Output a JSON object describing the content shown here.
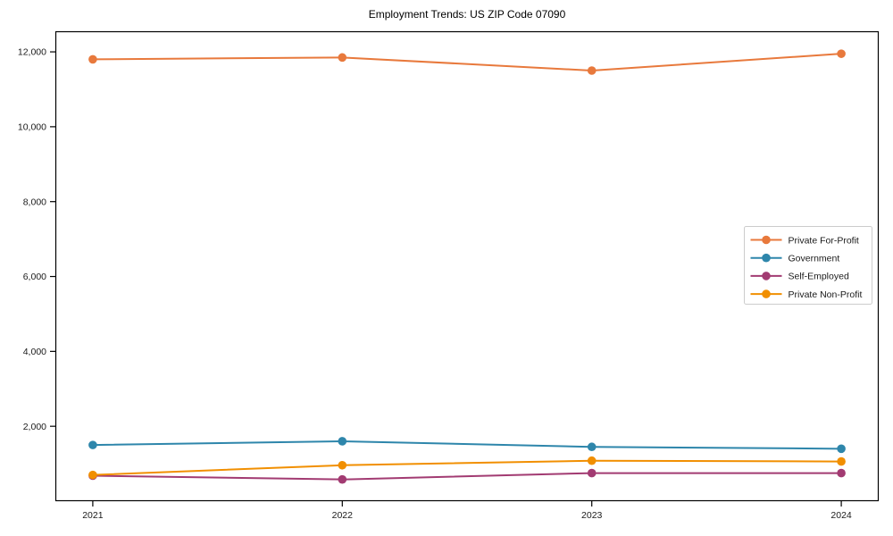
{
  "figure": {
    "title": "Employment Trends: US ZIP Code 07090"
  },
  "chart_data": {
    "type": "line",
    "title": "Employment Trends: US ZIP Code 07090",
    "xlabel": "",
    "ylabel": "",
    "x": [
      2021,
      2022,
      2023,
      2024
    ],
    "x_tick_labels": [
      "2021",
      "2022",
      "2023",
      "2024"
    ],
    "series": [
      {
        "name": "Private For-Profit",
        "color": "#E8793C",
        "values": [
          11800,
          11850,
          11500,
          11950
        ]
      },
      {
        "name": "Government",
        "color": "#2E86AB",
        "values": [
          1500,
          1600,
          1450,
          1400
        ]
      },
      {
        "name": "Self-Employed",
        "color": "#A23B72",
        "values": [
          680,
          580,
          750,
          750
        ]
      },
      {
        "name": "Private Non-Profit",
        "color": "#F18F01",
        "values": [
          700,
          960,
          1080,
          1060
        ]
      }
    ],
    "xlim": [
      2020.85,
      2024.15
    ],
    "ylim": [
      0,
      12550
    ],
    "yticks": [
      2000,
      4000,
      6000,
      8000,
      10000,
      12000
    ],
    "ytick_labels": [
      "2,000",
      "4,000",
      "6,000",
      "8,000",
      "10,000",
      "12,000"
    ],
    "grid": false,
    "legend": {
      "position": "center-right",
      "items": [
        "Private For-Profit",
        "Government",
        "Self-Employed",
        "Private Non-Profit"
      ]
    },
    "axis_color": "#000000",
    "legend_border_color": "#cccccc"
  }
}
